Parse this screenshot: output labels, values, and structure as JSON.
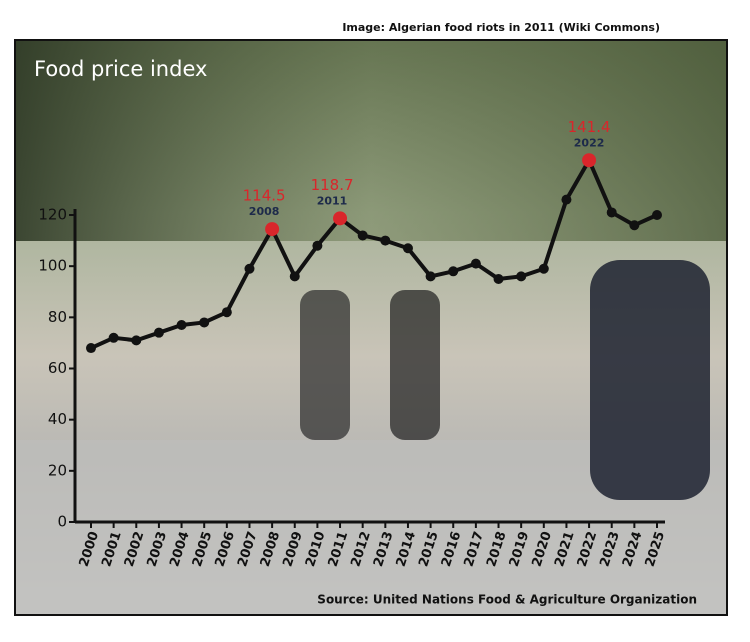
{
  "credit": "Image: Algerian food riots in 2011 (Wiki Commons)",
  "source": "Source: United Nations Food & Agriculture Organization",
  "chart_data": {
    "type": "line",
    "title": "Food price index",
    "categories": [
      "2000",
      "2001",
      "2002",
      "2003",
      "2004",
      "2005",
      "2006",
      "2007",
      "2008",
      "2009",
      "2010",
      "2011",
      "2012",
      "2013",
      "2014",
      "2015",
      "2016",
      "2017",
      "2018",
      "2019",
      "2020",
      "2021",
      "2022",
      "2023",
      "2024",
      "2025"
    ],
    "series": [
      {
        "name": "Food price index",
        "color": "#111111",
        "highlight_color": "#d9262b",
        "values": [
          68,
          72,
          71,
          74,
          77,
          78,
          82,
          99,
          114.5,
          96,
          108,
          118.7,
          112,
          110,
          107,
          96,
          98,
          101,
          95,
          96,
          99,
          126,
          141.4,
          121,
          116,
          120
        ],
        "value_labels": [
          null,
          null,
          null,
          null,
          null,
          null,
          null,
          null,
          "114.5",
          null,
          null,
          "118.7",
          null,
          null,
          null,
          null,
          null,
          null,
          null,
          null,
          null,
          null,
          "141.4",
          null,
          null,
          null
        ]
      }
    ],
    "ylim": [
      0,
      120
    ],
    "yticks": [
      0,
      20,
      40,
      60,
      80,
      100,
      120
    ]
  }
}
